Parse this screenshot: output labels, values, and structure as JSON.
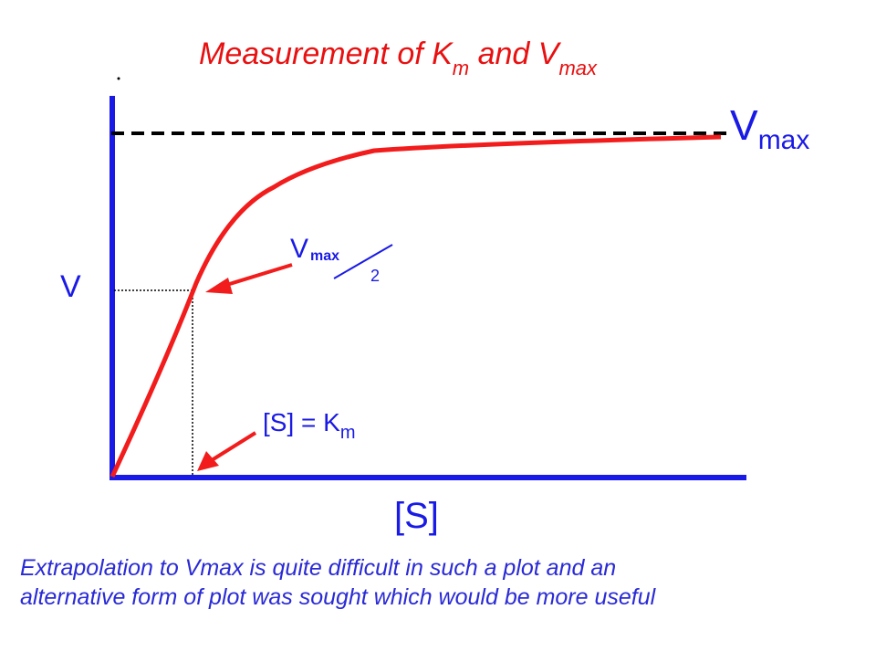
{
  "title": {
    "text": "Measurement of K",
    "sub1": "m",
    "mid": " and V",
    "sub2": "max"
  },
  "y_label": "V",
  "x_label": "[S]",
  "vmax_label": {
    "main": "V",
    "sub": "max"
  },
  "half_label": {
    "main": "V",
    "sup": "max",
    "denom": "2"
  },
  "km_label": {
    "main": "[S] = K",
    "sub": "m"
  },
  "caption": {
    "line1": "Extrapolation to Vmax is quite difficult in such a plot and an",
    "line2": "alternative form of plot was sought which would be more useful"
  },
  "colors": {
    "axis": "#1a1ae6",
    "curve": "#f21c1c",
    "label": "#2a2ad6",
    "title": "#e81010",
    "guide": "#000000"
  }
}
